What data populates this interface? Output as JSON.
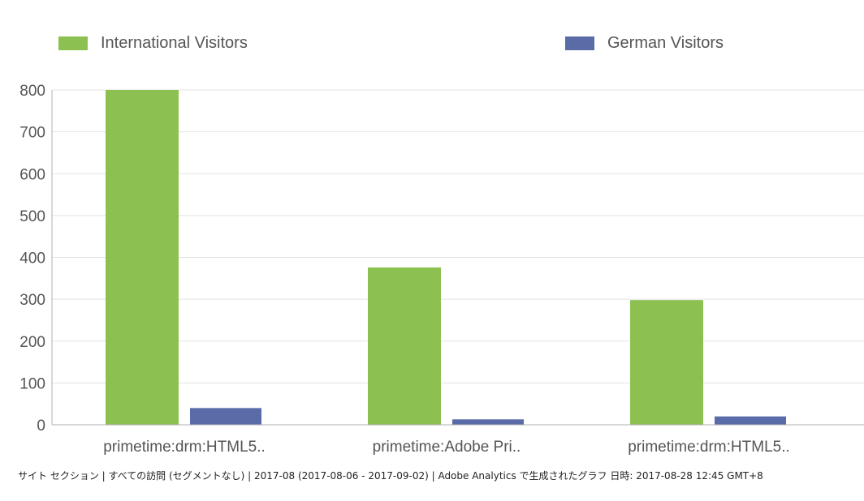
{
  "chart_data": {
    "type": "bar",
    "categories": [
      "primetime:drm:HTML5..",
      "primetime:Adobe Pri..",
      "primetime:drm:HTML5.."
    ],
    "series": [
      {
        "name": "International Visitors",
        "values": [
          800,
          376,
          298
        ],
        "color": "#8cc152"
      },
      {
        "name": "German Visitors",
        "values": [
          40,
          13,
          20
        ],
        "color": "#5a6ca8"
      }
    ],
    "ylim": [
      0,
      800
    ],
    "yticks": [
      0,
      100,
      200,
      300,
      400,
      500,
      600,
      700,
      800
    ],
    "grid": true,
    "legend_position": "top",
    "title": "",
    "xlabel": "",
    "ylabel": ""
  },
  "footer": {
    "text": "サイト セクション | すべての訪問 (セグメントなし) | 2017-08 (2017-08-06 - 2017-09-02) | Adobe Analytics で生成されたグラフ 日時: 2017-08-28 12:45 GMT+8"
  }
}
